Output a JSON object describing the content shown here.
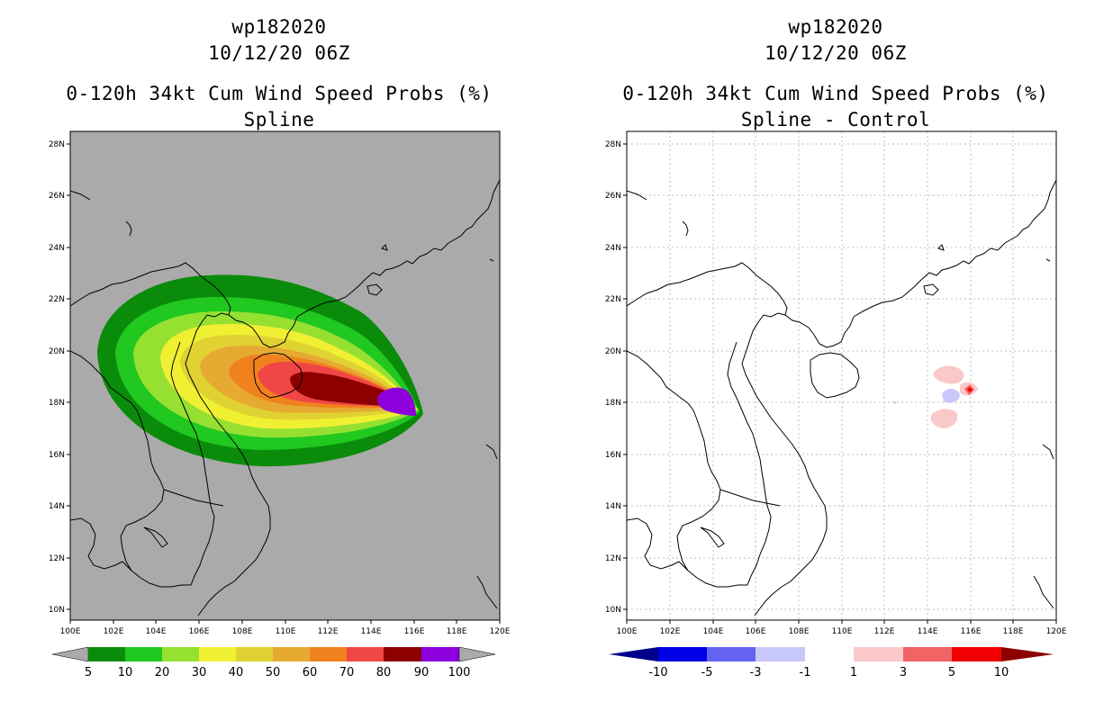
{
  "left": {
    "storm": "wp182020",
    "datetime": "10/12/20 06Z",
    "product": "0-120h 34kt Cum Wind Speed Probs (%)",
    "subtitle": "Spline",
    "colorbar_labels": [
      "5",
      "10",
      "20",
      "30",
      "40",
      "50",
      "60",
      "70",
      "80",
      "90",
      "100"
    ],
    "colorbar_colors": [
      "#0a8c0a",
      "#20c820",
      "#96e032",
      "#f0f032",
      "#e0d232",
      "#e6aa32",
      "#f0821e",
      "#f04646",
      "#8c0000",
      "#8c00dc"
    ]
  },
  "right": {
    "storm": "wp182020",
    "datetime": "10/12/20 06Z",
    "product": "0-120h 34kt Cum Wind Speed Probs (%)",
    "subtitle": "Spline - Control",
    "colorbar_labels": [
      "-10",
      "-5",
      "-3",
      "-1",
      "1",
      "3",
      "5",
      "10"
    ],
    "colorbar_colors": [
      "#0000e6",
      "#6464f0",
      "#c8c8fa",
      "#ffffff",
      "#fac8c8",
      "#f06464",
      "#f00000"
    ],
    "end_colors": {
      "low": "#00008c",
      "high": "#8c0000"
    }
  },
  "axes": {
    "lat_labels": [
      "28N",
      "26N",
      "24N",
      "22N",
      "20N",
      "18N",
      "16N",
      "14N",
      "12N",
      "10N"
    ],
    "lon_labels": [
      "100E",
      "102E",
      "104E",
      "106E",
      "108E",
      "110E",
      "112E",
      "114E",
      "116E",
      "118E",
      "120E"
    ]
  },
  "colors": {
    "ocean_left": "#aaaaaa",
    "coast": "#000000",
    "grid": "#bfbfbf"
  }
}
